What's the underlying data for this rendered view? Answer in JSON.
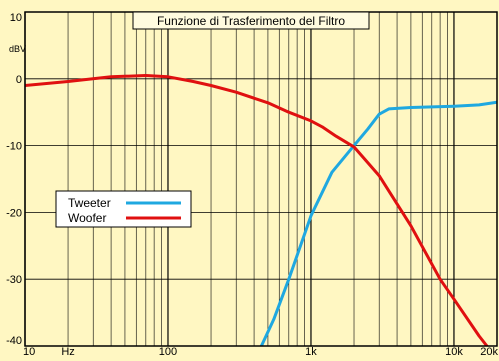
{
  "chart_data": {
    "type": "line",
    "title": "Funzione di Trasferimento del Filtro",
    "y_unit_label": "dBV",
    "xscale": "log",
    "xlim": [
      10,
      20000
    ],
    "ylim": [
      -40,
      10
    ],
    "grid": true,
    "legend_placement": "left, middle",
    "x_tick_labels": [
      {
        "value": 10,
        "label": "10"
      },
      {
        "value": 20,
        "label": "Hz"
      },
      {
        "value": 100,
        "label": "100"
      },
      {
        "value": 1000,
        "label": "1k"
      },
      {
        "value": 10000,
        "label": "10k"
      },
      {
        "value": 20000,
        "label": "20k"
      }
    ],
    "y_tick_labels": [
      {
        "value": 10,
        "label": "10"
      },
      {
        "value": 0,
        "label": "0"
      },
      {
        "value": -10,
        "label": "-10"
      },
      {
        "value": -20,
        "label": "-20"
      },
      {
        "value": -30,
        "label": "-30"
      },
      {
        "value": -40,
        "label": "-40"
      }
    ],
    "series": [
      {
        "name": "Tweeter",
        "color": "#1fa8e0",
        "points": [
          [
            450,
            -40
          ],
          [
            550,
            -36
          ],
          [
            700,
            -30
          ],
          [
            1000,
            -20.5
          ],
          [
            1400,
            -14
          ],
          [
            2000,
            -10
          ],
          [
            2500,
            -7.5
          ],
          [
            3000,
            -5.3
          ],
          [
            3500,
            -4.5
          ],
          [
            5000,
            -4.3
          ],
          [
            10000,
            -4.1
          ],
          [
            15000,
            -3.9
          ],
          [
            20000,
            -3.5
          ]
        ]
      },
      {
        "name": "Woofer",
        "color": "#e01010",
        "points": [
          [
            10,
            -1.0
          ],
          [
            20,
            -0.4
          ],
          [
            40,
            0.3
          ],
          [
            70,
            0.5
          ],
          [
            100,
            0.3
          ],
          [
            150,
            -0.4
          ],
          [
            200,
            -1.0
          ],
          [
            300,
            -2.0
          ],
          [
            500,
            -3.6
          ],
          [
            700,
            -5.0
          ],
          [
            1000,
            -6.3
          ],
          [
            1200,
            -7.2
          ],
          [
            1500,
            -8.6
          ],
          [
            2000,
            -10.2
          ],
          [
            3000,
            -14.5
          ],
          [
            5000,
            -22
          ],
          [
            8000,
            -30
          ],
          [
            10000,
            -33
          ],
          [
            15000,
            -38.5
          ],
          [
            17000,
            -40
          ]
        ]
      }
    ]
  }
}
